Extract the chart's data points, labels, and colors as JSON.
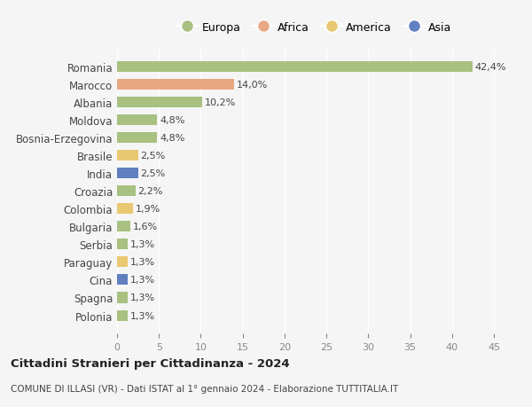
{
  "countries": [
    "Romania",
    "Marocco",
    "Albania",
    "Moldova",
    "Bosnia-Erzegovina",
    "Brasile",
    "India",
    "Croazia",
    "Colombia",
    "Bulgaria",
    "Serbia",
    "Paraguay",
    "Cina",
    "Spagna",
    "Polonia"
  ],
  "values": [
    42.4,
    14.0,
    10.2,
    4.8,
    4.8,
    2.5,
    2.5,
    2.2,
    1.9,
    1.6,
    1.3,
    1.3,
    1.3,
    1.3,
    1.3
  ],
  "continents": [
    "Europa",
    "Africa",
    "Europa",
    "Europa",
    "Europa",
    "America",
    "Asia",
    "Europa",
    "America",
    "Europa",
    "Europa",
    "America",
    "Asia",
    "Europa",
    "Europa"
  ],
  "labels": [
    "42,4%",
    "14,0%",
    "10,2%",
    "4,8%",
    "4,8%",
    "2,5%",
    "2,5%",
    "2,2%",
    "1,9%",
    "1,6%",
    "1,3%",
    "1,3%",
    "1,3%",
    "1,3%",
    "1,3%"
  ],
  "colors": {
    "Europa": "#a8c080",
    "Africa": "#e8a882",
    "America": "#e8c870",
    "Asia": "#6080c0"
  },
  "legend_colors": {
    "Europa": "#a8c080",
    "Africa": "#e8a882",
    "America": "#e8c870",
    "Asia": "#6080c0"
  },
  "title": "Cittadini Stranieri per Cittadinanza - 2024",
  "subtitle": "COMUNE DI ILLASI (VR) - Dati ISTAT al 1° gennaio 2024 - Elaborazione TUTTITALIA.IT",
  "xlim": [
    0,
    47
  ],
  "xticks": [
    0,
    5,
    10,
    15,
    20,
    25,
    30,
    35,
    40,
    45
  ],
  "background_color": "#f5f5f5",
  "grid_color": "#ffffff",
  "bar_height": 0.6
}
